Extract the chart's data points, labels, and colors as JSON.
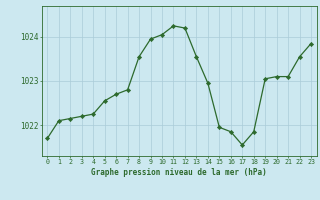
{
  "x": [
    0,
    1,
    2,
    3,
    4,
    5,
    6,
    7,
    8,
    9,
    10,
    11,
    12,
    13,
    14,
    15,
    16,
    17,
    18,
    19,
    20,
    21,
    22,
    23
  ],
  "y": [
    1021.7,
    1022.1,
    1022.15,
    1022.2,
    1022.25,
    1022.55,
    1022.7,
    1022.8,
    1023.55,
    1023.95,
    1024.05,
    1024.25,
    1024.2,
    1023.55,
    1022.95,
    1021.95,
    1021.85,
    1021.55,
    1021.85,
    1023.05,
    1023.1,
    1023.1,
    1023.55,
    1023.85
  ],
  "line_color": "#2d6a2d",
  "marker_color": "#2d6a2d",
  "background_color": "#cce8f0",
  "plot_bg_color": "#cce8f0",
  "grid_color": "#aaccd8",
  "axis_color": "#2d6a2d",
  "label_color": "#2d6a2d",
  "title": "Graphe pression niveau de la mer (hPa)",
  "xlabel_ticks": [
    0,
    1,
    2,
    3,
    4,
    5,
    6,
    7,
    8,
    9,
    10,
    11,
    12,
    13,
    14,
    15,
    16,
    17,
    18,
    19,
    20,
    21,
    22,
    23
  ],
  "yticks": [
    1022,
    1023,
    1024
  ],
  "ylim": [
    1021.3,
    1024.7
  ],
  "xlim": [
    -0.5,
    23.5
  ]
}
